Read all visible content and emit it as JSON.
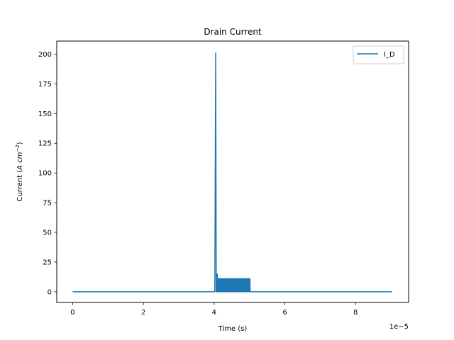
{
  "chart_data": {
    "type": "line",
    "title": "Drain Current",
    "xlabel": "Time (s)",
    "ylabel_prefix": "Current (",
    "ylabel_unit_main": "A cm",
    "ylabel_unit_exp": "−2",
    "ylabel_suffix": ")",
    "x_offset_label": "1e−5",
    "xlim": [
      -0.45,
      9.5
    ],
    "ylim": [
      -9,
      211
    ],
    "x_ticks": [
      0,
      2,
      4,
      6,
      8
    ],
    "y_ticks": [
      0,
      25,
      50,
      75,
      100,
      125,
      150,
      175,
      200
    ],
    "grid": false,
    "legend_position": "upper right",
    "series": [
      {
        "name": "I_D",
        "color": "#1f77b4",
        "x": [
          0,
          3.8,
          4.02,
          4.045,
          4.08,
          4.09,
          4.1,
          4.12,
          4.5,
          5.02,
          5.05,
          9.03
        ],
        "y": [
          0,
          0,
          0,
          201,
          0,
          15,
          0,
          0,
          0,
          0,
          0,
          0
        ],
        "oscillation": {
          "x_start": 4.06,
          "x_end": 5.02,
          "y_low": 0,
          "y_high": 11
        }
      }
    ]
  }
}
